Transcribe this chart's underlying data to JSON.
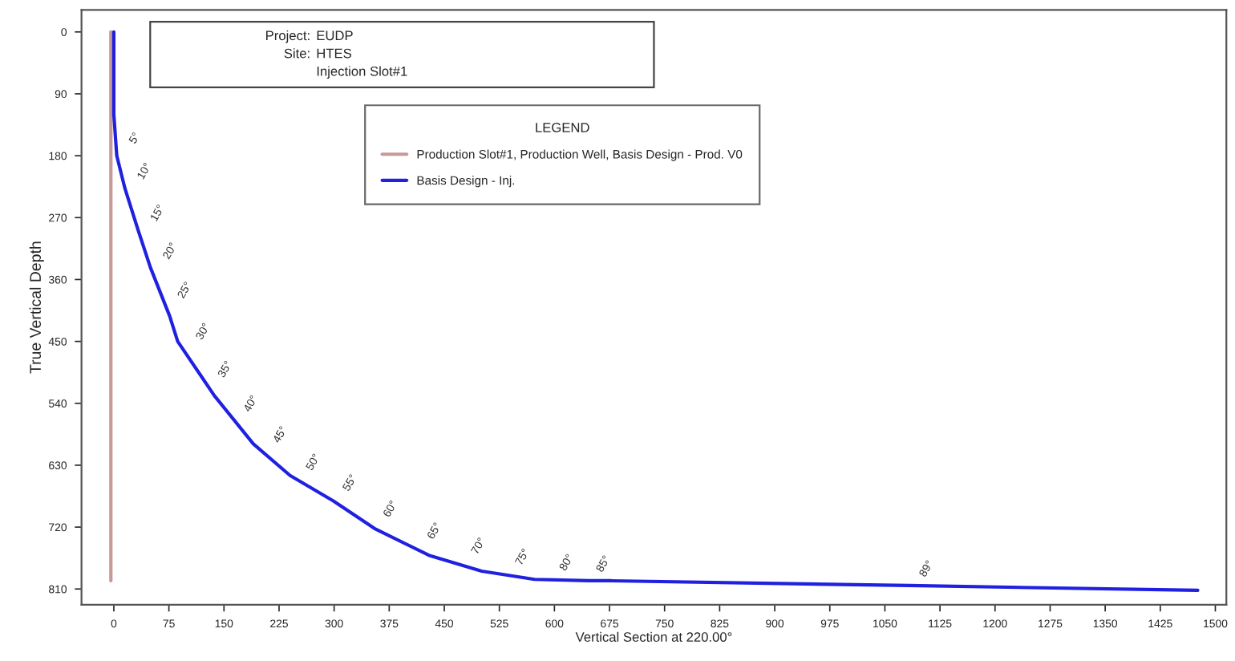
{
  "chart_data": {
    "type": "line",
    "xlabel": "Vertical Section at 220.00°",
    "ylabel": "True Vertical Depth",
    "legend_title": "LEGEND",
    "legend": "top",
    "xlim": [
      -44,
      1515
    ],
    "ylim": [
      833,
      -32
    ],
    "xticks": [
      0,
      75,
      150,
      225,
      300,
      375,
      450,
      525,
      600,
      675,
      750,
      825,
      900,
      975,
      1050,
      1125,
      1200,
      1275,
      1350,
      1425,
      1500
    ],
    "yticks": [
      0,
      90,
      180,
      270,
      360,
      450,
      540,
      630,
      720,
      810
    ],
    "series": [
      {
        "name": "Production Slot#1, Production Well, Basis Design - Prod. V0",
        "color": "#c89898",
        "x": [
          -4,
          -4
        ],
        "values": [
          0,
          798
        ]
      },
      {
        "name": "Basis Design - Inj.",
        "color": "#2020e0",
        "x": [
          0,
          0,
          4,
          15,
          33,
          50,
          76,
          87,
          137,
          190,
          240,
          299,
          355,
          429,
          501,
          573,
          647,
          676,
          1083,
          1476
        ],
        "values": [
          0,
          120,
          180,
          227,
          288,
          343,
          413,
          450,
          529,
          599,
          645,
          682,
          722,
          761,
          784,
          796,
          798,
          798,
          805,
          812
        ]
      }
    ],
    "annotations": [
      "Project:",
      "EUDP",
      "Site:",
      "HTES",
      "Injection Slot#1",
      {
        "text": "5°",
        "x": 4,
        "y": 175
      },
      {
        "text": "10°",
        "x": 15,
        "y": 227
      },
      {
        "text": "15°",
        "x": 33,
        "y": 288
      },
      {
        "text": "20°",
        "x": 50,
        "y": 343
      },
      {
        "text": "25°",
        "x": 70,
        "y": 400
      },
      {
        "text": "30°",
        "x": 95,
        "y": 460
      },
      {
        "text": "35°",
        "x": 125,
        "y": 515
      },
      {
        "text": "40°",
        "x": 160,
        "y": 565
      },
      {
        "text": "45°",
        "x": 200,
        "y": 610
      },
      {
        "text": "50°",
        "x": 245,
        "y": 650
      },
      {
        "text": "55°",
        "x": 295,
        "y": 680
      },
      {
        "text": "60°",
        "x": 350,
        "y": 718
      },
      {
        "text": "65°",
        "x": 410,
        "y": 750
      },
      {
        "text": "70°",
        "x": 470,
        "y": 772
      },
      {
        "text": "75°",
        "x": 530,
        "y": 788
      },
      {
        "text": "80°",
        "x": 590,
        "y": 796
      },
      {
        "text": "85°",
        "x": 640,
        "y": 798
      },
      {
        "text": "89°",
        "x": 1080,
        "y": 805
      }
    ]
  }
}
